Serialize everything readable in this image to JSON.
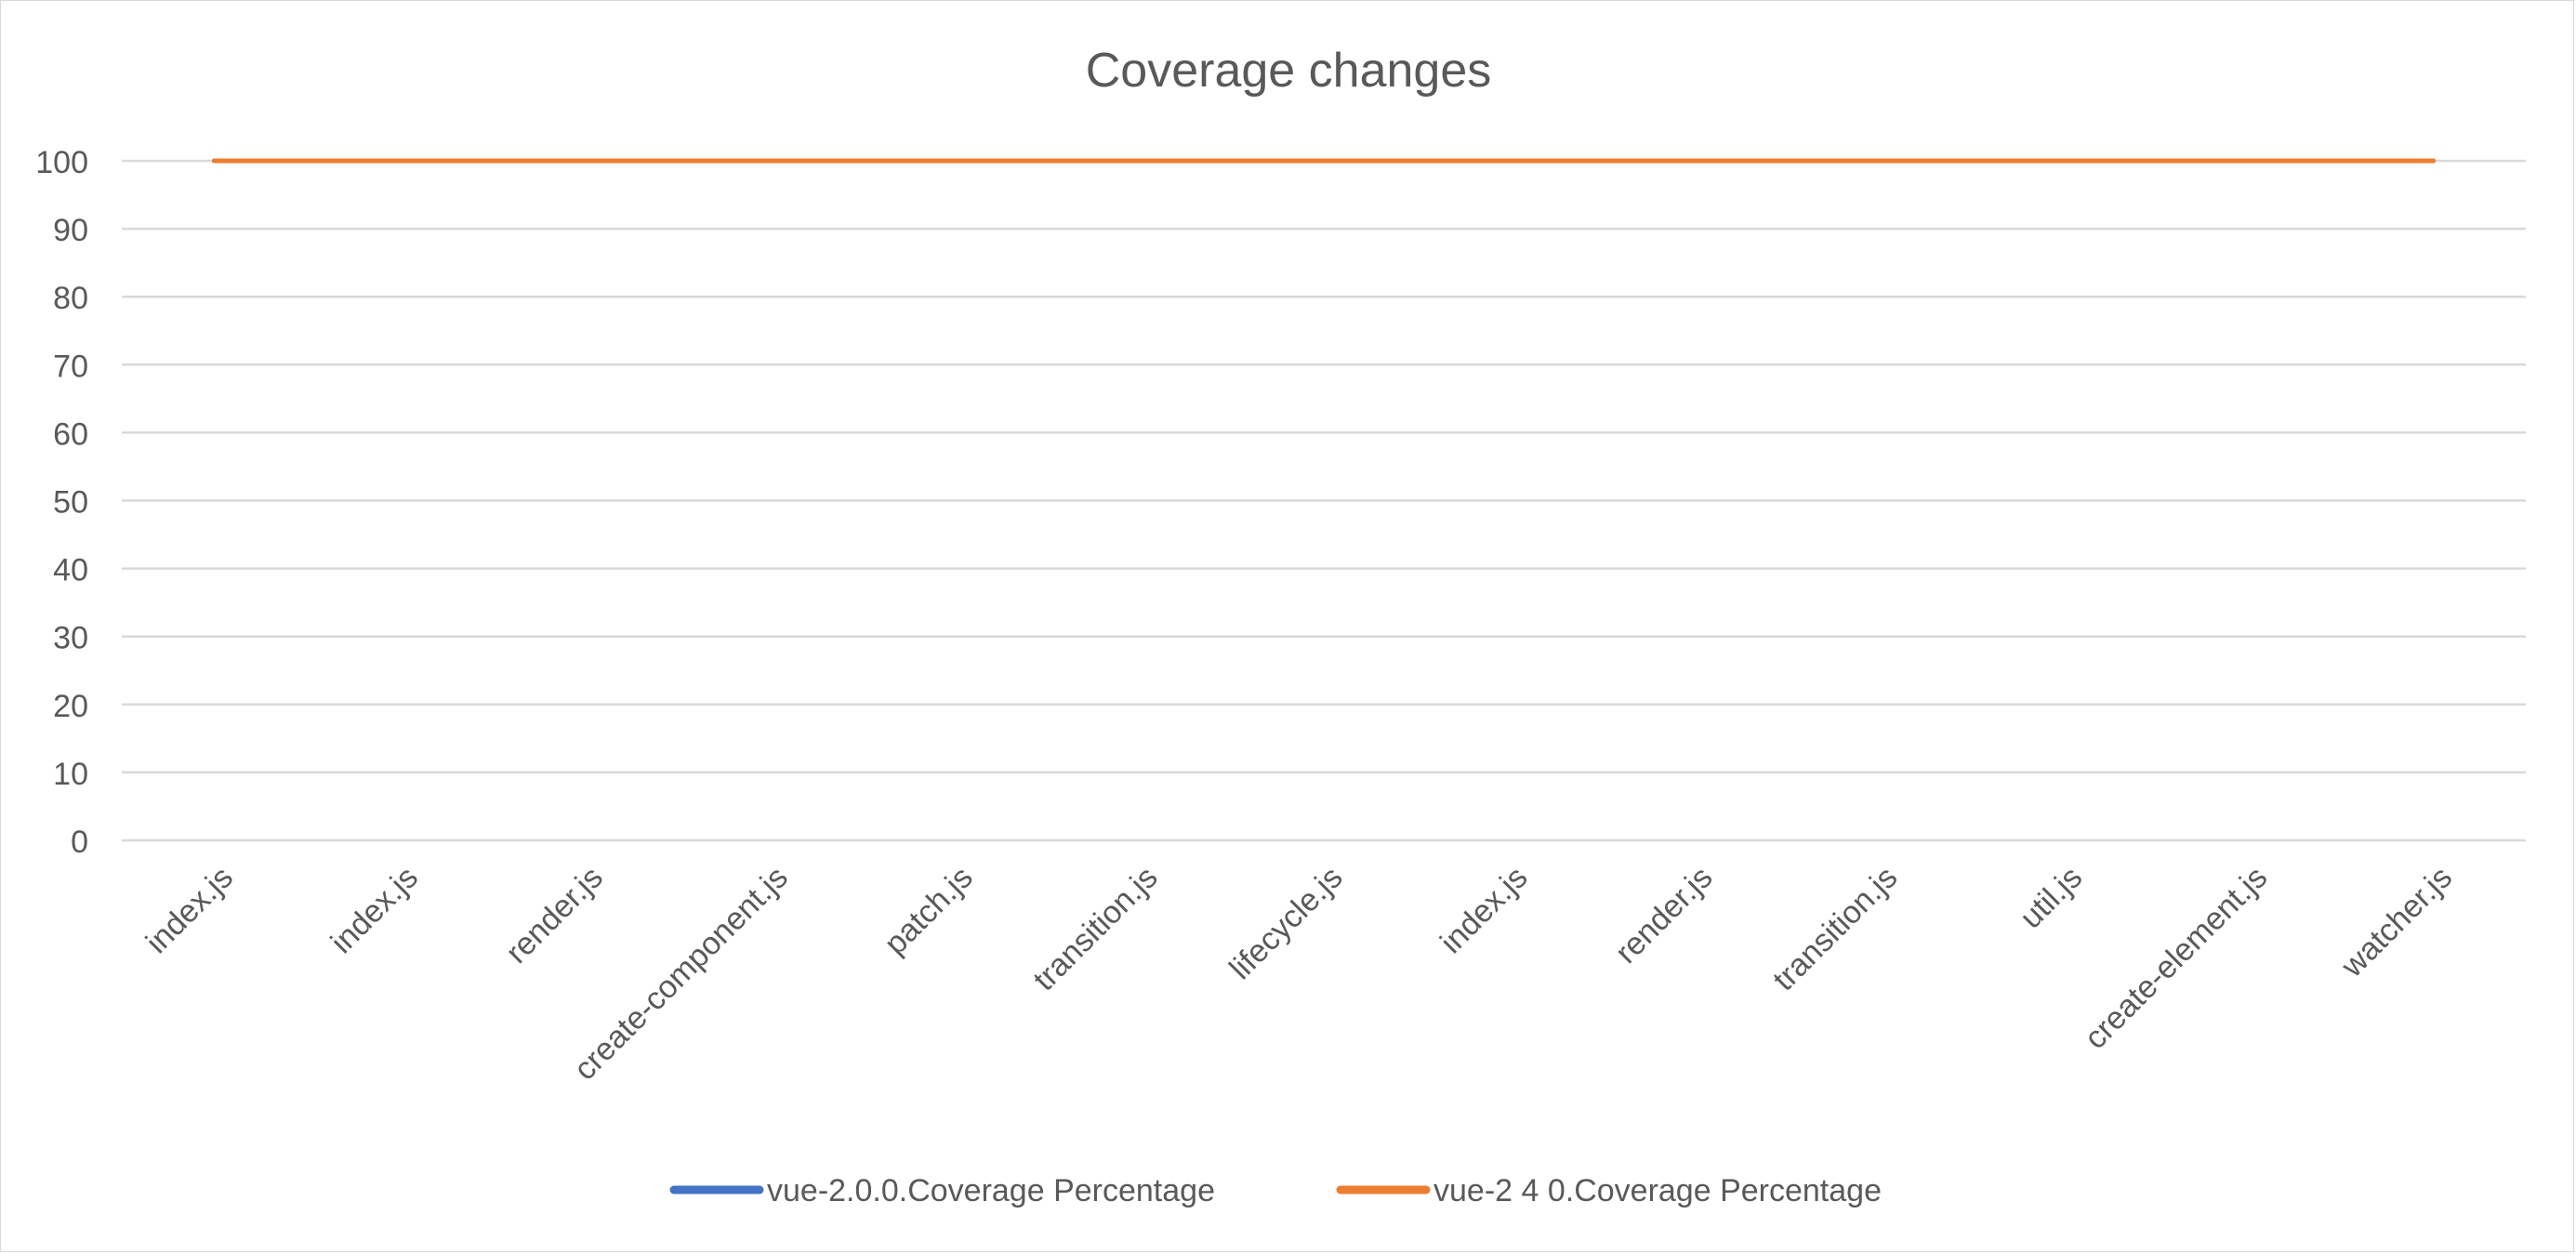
{
  "chart_data": {
    "type": "line",
    "title": "Coverage changes",
    "xlabel": "",
    "ylabel": "",
    "categories": [
      "index.js",
      "index.js",
      "render.js",
      "create-component.js",
      "patch.js",
      "transition.js",
      "lifecycle.js",
      "index.js",
      "render.js",
      "transition.js",
      "util.js",
      "create-element.js",
      "watcher.js"
    ],
    "ylim": [
      0,
      100
    ],
    "yticks": [
      0,
      10,
      20,
      30,
      40,
      50,
      60,
      70,
      80,
      90,
      100
    ],
    "grid": true,
    "legend_position": "bottom",
    "series": [
      {
        "name": "vue-2.0.0.Coverage Percentage",
        "color": "#4472c4",
        "values": [
          100,
          100,
          100,
          100,
          100,
          100,
          100,
          100,
          100,
          100,
          100,
          100,
          100
        ]
      },
      {
        "name": "vue-2 4 0.Coverage Percentage",
        "color": "#ed7d31",
        "values": [
          100,
          100,
          100,
          100,
          100,
          100,
          100,
          100,
          100,
          100,
          100,
          100,
          100
        ]
      }
    ]
  }
}
